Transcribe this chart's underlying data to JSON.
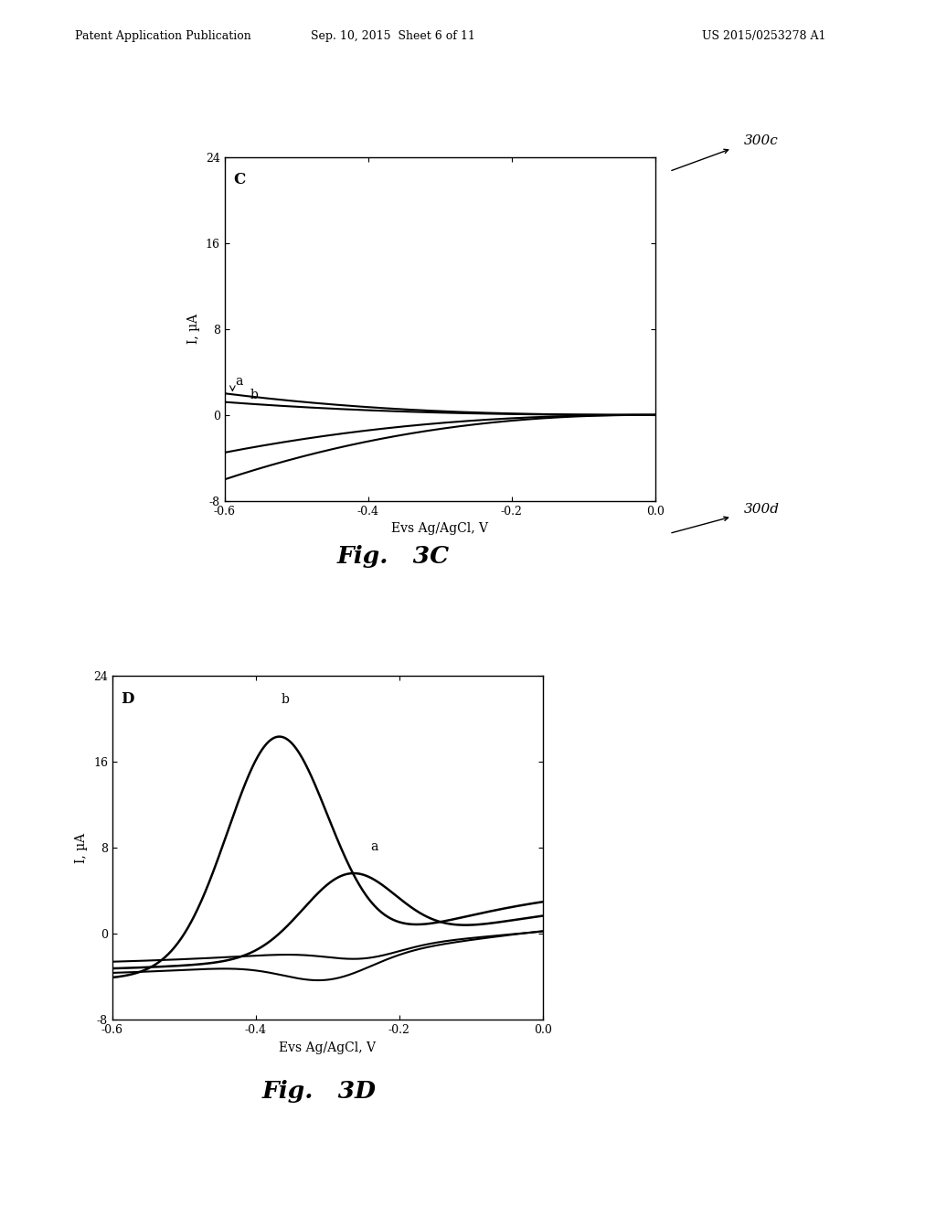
{
  "header_left": "Patent Application Publication",
  "header_center": "Sep. 10, 2015  Sheet 6 of 11",
  "header_right": "US 2015/0253278 A1",
  "fig_label_C": "Fig.   3C",
  "fig_label_D": "Fig.   3D",
  "ref_C": "300c",
  "ref_D": "300d",
  "plot_C": {
    "panel_letter": "C",
    "xlabel": "Evs Ag/AgCl, V",
    "ylabel": "I, µA",
    "xlim": [
      -0.6,
      0.0
    ],
    "ylim": [
      -8,
      24
    ],
    "yticks": [
      -8,
      0,
      8,
      16,
      24
    ],
    "xticks": [
      -0.6,
      -0.4,
      -0.2,
      0.0
    ],
    "label_a": "a",
    "label_b": "b"
  },
  "plot_D": {
    "panel_letter": "D",
    "xlabel": "Evs Ag/AgCl, V",
    "ylabel": "I, µA",
    "xlim": [
      -0.6,
      0.0
    ],
    "ylim": [
      -8,
      24
    ],
    "yticks": [
      -8,
      0,
      8,
      16,
      24
    ],
    "xticks": [
      -0.6,
      -0.4,
      -0.2,
      0.0
    ],
    "label_a": "a",
    "label_b": "b"
  }
}
